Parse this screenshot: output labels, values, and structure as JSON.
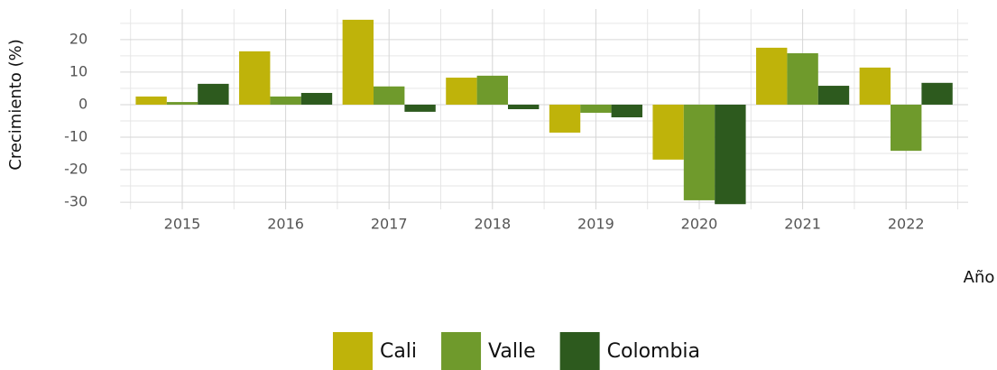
{
  "chart_data": {
    "type": "bar",
    "x_label": "Año",
    "y_label": "Crecimiento (%)",
    "categories": [
      "2015",
      "2016",
      "2017",
      "2018",
      "2019",
      "2020",
      "2021",
      "2022"
    ],
    "series": [
      {
        "name": "Cali",
        "color": "#bfb30a",
        "values": [
          2.5,
          16.4,
          26.1,
          8.3,
          -8.6,
          -16.9,
          17.5,
          11.4
        ]
      },
      {
        "name": "Valle",
        "color": "#6f9a2c",
        "values": [
          0.8,
          2.5,
          5.6,
          8.9,
          -2.5,
          -29.4,
          15.8,
          -14.2
        ]
      },
      {
        "name": "Colombia",
        "color": "#2d5a1e",
        "values": [
          6.4,
          3.6,
          -2.2,
          -1.4,
          -3.9,
          -30.6,
          5.8,
          6.7
        ]
      }
    ],
    "ylim": [
      -32.2,
      29.4
    ],
    "yticks": [
      -30,
      -20,
      -10,
      0,
      10,
      20
    ],
    "minor_yticks": [
      -25,
      -15,
      -5,
      5,
      15,
      25
    ],
    "grid": true,
    "legend": "bottom"
  }
}
